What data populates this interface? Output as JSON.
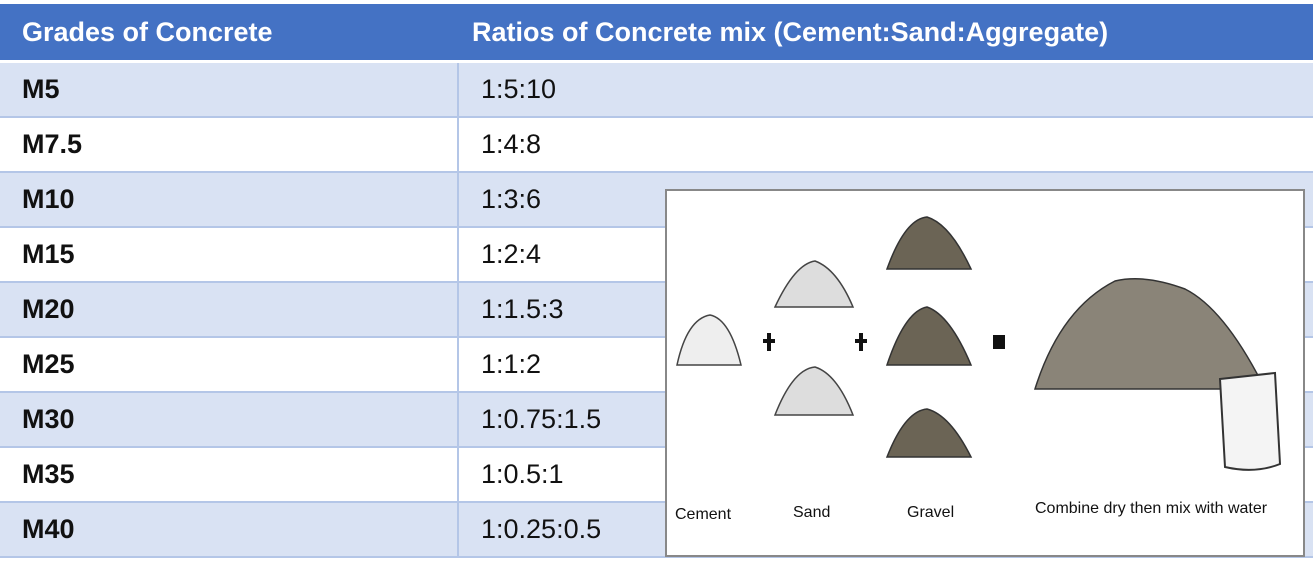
{
  "header": {
    "columns": [
      "Grades of Concrete",
      "Ratios of Concrete mix (Cement:Sand:Aggregate)"
    ]
  },
  "table": {
    "rows": [
      [
        "M5",
        "1:5:10"
      ],
      [
        "M7.5",
        "1:4:8"
      ],
      [
        "M10",
        "1:3:6"
      ],
      [
        "M15",
        "1:2:4"
      ],
      [
        "M20",
        "1:1.5:3"
      ],
      [
        "M25",
        "1:1:2"
      ],
      [
        "M30",
        "1:0.75:1.5"
      ],
      [
        "M35",
        "1:0.5:1"
      ],
      [
        "M40",
        "1:0.25:0.5"
      ]
    ]
  },
  "illustration": {
    "labels": [
      "Cement",
      "Sand",
      "Gravel",
      "Combine dry then mix with water"
    ]
  }
}
